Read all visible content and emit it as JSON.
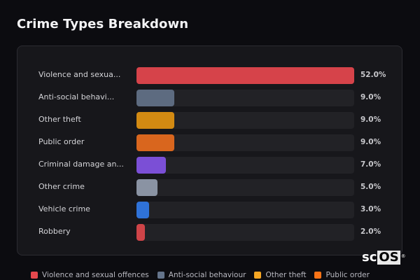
{
  "header": {
    "title": "Crime Types Breakdown"
  },
  "rows": [
    {
      "label": "Violence and sexua...",
      "pct": "52.0%",
      "value": 52.0,
      "color": "#d6434a"
    },
    {
      "label": "Anti-social behavi...",
      "pct": "9.0%",
      "value": 9.0,
      "color": "#5d6b80"
    },
    {
      "label": "Other theft",
      "pct": "9.0%",
      "value": 9.0,
      "color": "#d38a12"
    },
    {
      "label": "Public order",
      "pct": "9.0%",
      "value": 9.0,
      "color": "#d9661e"
    },
    {
      "label": "Criminal damage an...",
      "pct": "7.0%",
      "value": 7.0,
      "color": "#7b4fd6"
    },
    {
      "label": "Other crime",
      "pct": "5.0%",
      "value": 5.0,
      "color": "#8a93a3"
    },
    {
      "label": "Vehicle crime",
      "pct": "3.0%",
      "value": 3.0,
      "color": "#2f72d8"
    },
    {
      "label": "Robbery",
      "pct": "2.0%",
      "value": 2.0,
      "color": "#cf4448"
    }
  ],
  "legend": [
    {
      "label": "Violence and sexual offences",
      "color": "#e5484d"
    },
    {
      "label": "Anti-social behaviour",
      "color": "#64748b"
    },
    {
      "label": "Other theft",
      "color": "#f5a623"
    },
    {
      "label": "Public order",
      "color": "#f97316"
    }
  ],
  "logo": {
    "text_a": "sc",
    "text_b": "OS",
    "reg": "®"
  },
  "chart_data": {
    "type": "bar",
    "orientation": "horizontal",
    "title": "Crime Types Breakdown",
    "categories": [
      "Violence and sexual offences",
      "Anti-social behaviour",
      "Other theft",
      "Public order",
      "Criminal damage and arson",
      "Other crime",
      "Vehicle crime",
      "Robbery"
    ],
    "display_labels": [
      "Violence and sexua...",
      "Anti-social behavi...",
      "Other theft",
      "Public order",
      "Criminal damage an...",
      "Other crime",
      "Vehicle crime",
      "Robbery"
    ],
    "values": [
      52.0,
      9.0,
      9.0,
      9.0,
      7.0,
      5.0,
      3.0,
      2.0
    ],
    "value_labels": [
      "52.0%",
      "9.0%",
      "9.0%",
      "9.0%",
      "7.0%",
      "5.0%",
      "3.0%",
      "2.0%"
    ],
    "colors": [
      "#d6434a",
      "#5d6b80",
      "#d38a12",
      "#d9661e",
      "#7b4fd6",
      "#8a93a3",
      "#2f72d8",
      "#cf4448"
    ],
    "xlabel": "",
    "ylabel": "",
    "unit": "%",
    "xlim": [
      0,
      52
    ],
    "grid": false,
    "legend_position": "bottom",
    "legend_entries_visible": [
      "Violence and sexual offences",
      "Anti-social behaviour",
      "Other theft",
      "Public order"
    ]
  }
}
